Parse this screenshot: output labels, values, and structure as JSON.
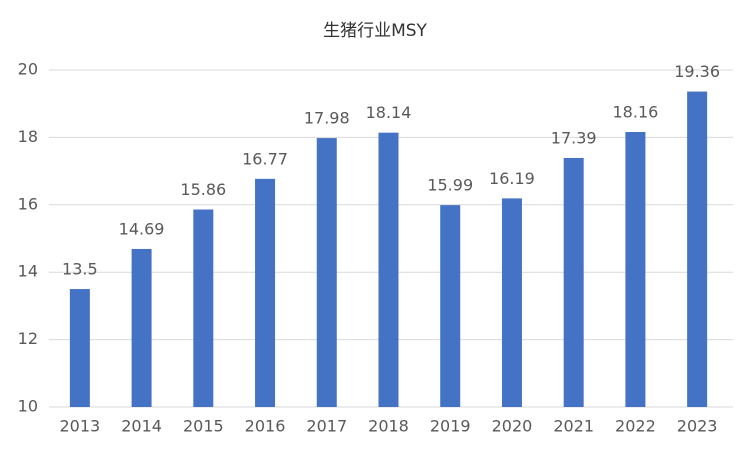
{
  "chart_data": {
    "type": "bar",
    "title": "生猪行业MSY",
    "categories": [
      "2013",
      "2014",
      "2015",
      "2016",
      "2017",
      "2018",
      "2019",
      "2020",
      "2021",
      "2022",
      "2023"
    ],
    "values": [
      13.5,
      14.69,
      15.86,
      16.77,
      17.98,
      18.14,
      15.99,
      16.19,
      17.39,
      18.16,
      19.36
    ],
    "color": "#4472c4",
    "ylim": [
      10,
      20
    ],
    "yticks": [
      10,
      12,
      14,
      16,
      18,
      20
    ],
    "grid": true,
    "data_labels": true
  }
}
